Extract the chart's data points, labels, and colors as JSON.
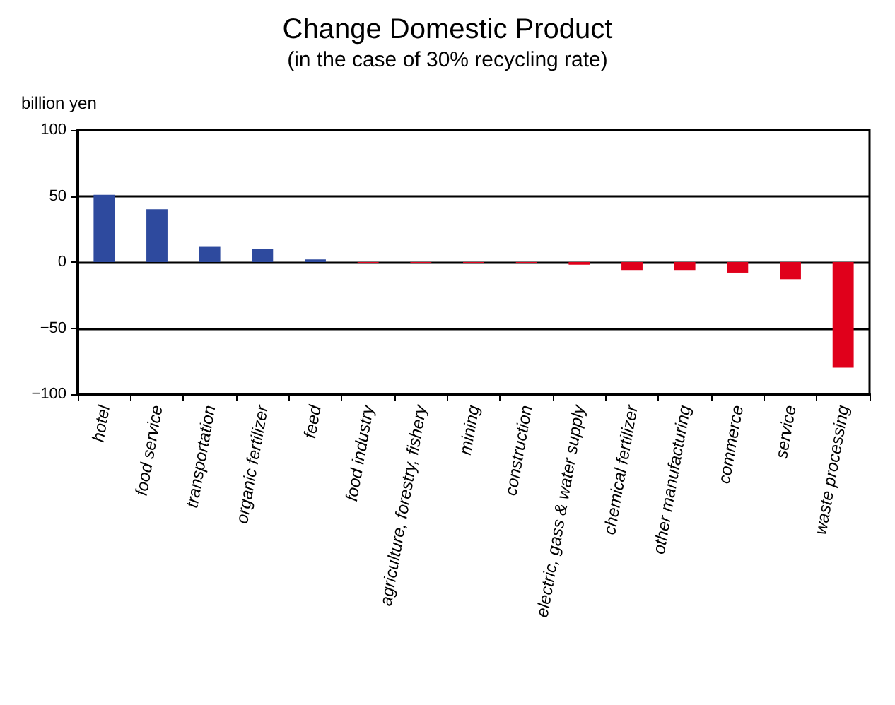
{
  "chart_data": {
    "type": "bar",
    "title": "Change Domestic Product",
    "subtitle": "(in the case of 30% recycling rate)",
    "ylabel": "billion yen",
    "categories": [
      "hotel",
      "food service",
      "transportation",
      "organic fertilizer",
      "feed",
      "food industry",
      "agriculture, forestry, fishery",
      "mining",
      "construction",
      "electric, gass & water supply",
      "chemical fertilizer",
      "other manufacturing",
      "commerce",
      "service",
      "waste processing"
    ],
    "values": [
      51,
      40,
      12,
      10,
      2,
      -1,
      -1,
      -1,
      -1,
      -2,
      -6,
      -6,
      -8,
      -13,
      -80
    ],
    "colors": [
      "#2e4a9e",
      "#2e4a9e",
      "#2e4a9e",
      "#2e4a9e",
      "#2e4a9e",
      "#e0001b",
      "#e0001b",
      "#e0001b",
      "#e0001b",
      "#e0001b",
      "#e0001b",
      "#e0001b",
      "#e0001b",
      "#e0001b",
      "#e0001b"
    ],
    "ylim": [
      -100,
      100
    ],
    "yticks": [
      100,
      50,
      0,
      {
        "value": -50,
        "label": "−50"
      },
      {
        "value": -100,
        "label": "−100"
      }
    ],
    "grid": "y"
  }
}
